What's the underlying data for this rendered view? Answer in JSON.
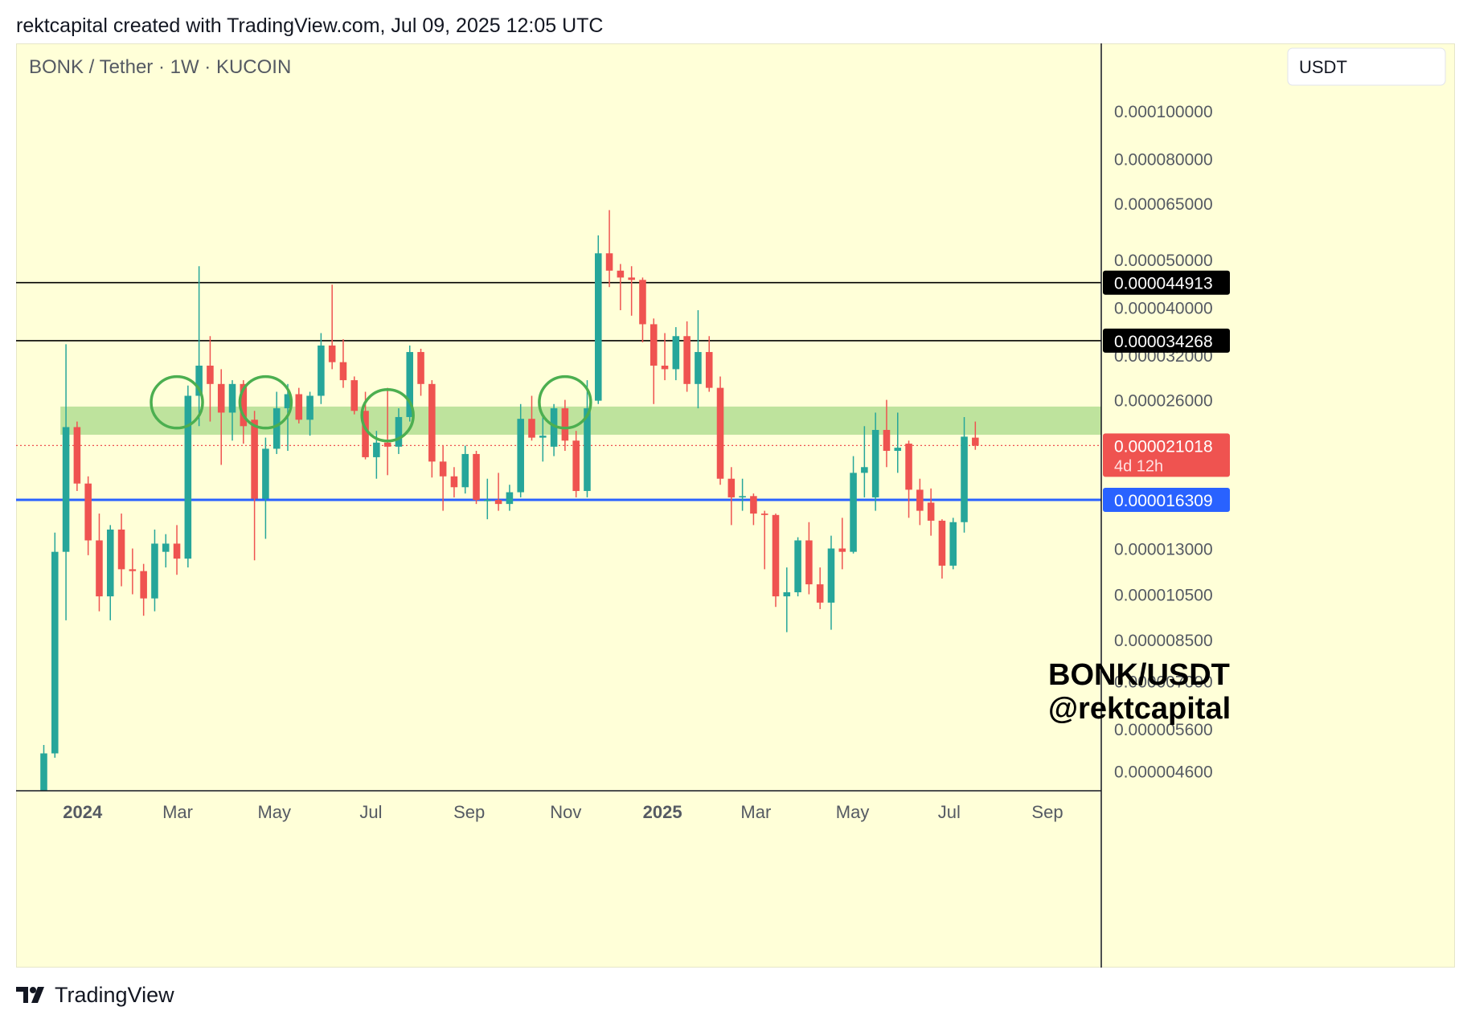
{
  "header": {
    "caption": "rektcapital created with TradingView.com, Jul 09, 2025 12:05 UTC"
  },
  "footer": {
    "brand": "TradingView",
    "logo_icon": "tradingview-logo-icon"
  },
  "chart_data": {
    "type": "candlestick",
    "title": "BONK / Tether · 1W · KUCOIN",
    "currency_button": "USDT",
    "watermark": [
      "BONK/USDT",
      "@rektcapital"
    ],
    "y_scale": "log",
    "y_ticks": [
      "0.000100000",
      "0.000080000",
      "0.000065000",
      "0.000050000",
      "0.000040000",
      "0.000032000",
      "0.000026000",
      "0.000013000",
      "0.000010500",
      "0.000008500",
      "0.000007000",
      "0.000005600",
      "0.000004600"
    ],
    "x_ticks": [
      {
        "label": "2024",
        "date": "2024-01-01",
        "bold": true
      },
      {
        "label": "Mar",
        "date": "2024-03-01",
        "bold": false
      },
      {
        "label": "May",
        "date": "2024-05-01",
        "bold": false
      },
      {
        "label": "Jul",
        "date": "2024-07-01",
        "bold": false
      },
      {
        "label": "Sep",
        "date": "2024-09-01",
        "bold": false
      },
      {
        "label": "Nov",
        "date": "2024-11-01",
        "bold": false
      },
      {
        "label": "2025",
        "date": "2025-01-01",
        "bold": true
      },
      {
        "label": "Mar",
        "date": "2025-03-01",
        "bold": false
      },
      {
        "label": "May",
        "date": "2025-05-01",
        "bold": false
      },
      {
        "label": "Jul",
        "date": "2025-07-01",
        "bold": false
      },
      {
        "label": "Sep",
        "date": "2025-09-01",
        "bold": false
      }
    ],
    "x_range": [
      "2023-11-20",
      "2025-10-05"
    ],
    "y_range": [
      4.2e-06,
      0.000118
    ],
    "horizontal_levels": [
      {
        "value": 4.4913e-05,
        "label": "0.000044913",
        "color": "#000000",
        "label_bg": "#000000"
      },
      {
        "value": 3.4268e-05,
        "label": "0.000034268",
        "color": "#000000",
        "label_bg": "#000000"
      },
      {
        "value": 1.6309e-05,
        "label": "0.000016309",
        "color": "#2962ff",
        "label_bg": "#2962ff"
      }
    ],
    "last_price": {
      "value": 2.1018e-05,
      "label": "0.000021018",
      "countdown": "4d 12h",
      "color": "#ef5350"
    },
    "support_zone": {
      "start": "2023-12-18",
      "end": "2025-10-05",
      "low": 2.21e-05,
      "high": 2.52e-05,
      "color": "#a8d98a"
    },
    "circles": [
      {
        "date": "2024-02-26",
        "price": 2.57e-05
      },
      {
        "date": "2024-04-22",
        "price": 2.57e-05
      },
      {
        "date": "2024-07-08",
        "price": 2.42e-05
      },
      {
        "date": "2024-10-28",
        "price": 2.57e-05
      }
    ],
    "colors": {
      "up": "#26a69a",
      "down": "#ef5350",
      "background": "#ffffd8"
    },
    "candles": [
      {
        "date": "2023-12-04",
        "o": 2.5e-06,
        "h": 5.2e-06,
        "l": 2.5e-06,
        "c": 5e-06
      },
      {
        "date": "2023-12-11",
        "o": 5e-06,
        "h": 1.4e-05,
        "l": 4.9e-06,
        "c": 1.28e-05
      },
      {
        "date": "2023-12-18",
        "o": 1.28e-05,
        "h": 3.37e-05,
        "l": 9.3e-06,
        "c": 2.29e-05
      },
      {
        "date": "2023-12-25",
        "o": 2.29e-05,
        "h": 2.35e-05,
        "l": 1.7e-05,
        "c": 1.76e-05
      },
      {
        "date": "2024-01-01",
        "o": 1.76e-05,
        "h": 1.82e-05,
        "l": 1.26e-05,
        "c": 1.35e-05
      },
      {
        "date": "2024-01-08",
        "o": 1.35e-05,
        "h": 1.53e-05,
        "l": 9.7e-06,
        "c": 1.04e-05
      },
      {
        "date": "2024-01-15",
        "o": 1.04e-05,
        "h": 1.45e-05,
        "l": 9.3e-06,
        "c": 1.42e-05
      },
      {
        "date": "2024-01-22",
        "o": 1.42e-05,
        "h": 1.53e-05,
        "l": 1.09e-05,
        "c": 1.18e-05
      },
      {
        "date": "2024-01-29",
        "o": 1.18e-05,
        "h": 1.3e-05,
        "l": 1.05e-05,
        "c": 1.17e-05
      },
      {
        "date": "2024-02-05",
        "o": 1.17e-05,
        "h": 1.21e-05,
        "l": 9.5e-06,
        "c": 1.03e-05
      },
      {
        "date": "2024-02-12",
        "o": 1.03e-05,
        "h": 1.42e-05,
        "l": 9.7e-06,
        "c": 1.33e-05
      },
      {
        "date": "2024-02-19",
        "o": 1.28e-05,
        "h": 1.39e-05,
        "l": 1.19e-05,
        "c": 1.33e-05
      },
      {
        "date": "2024-02-26",
        "o": 1.33e-05,
        "h": 1.45e-05,
        "l": 1.15e-05,
        "c": 1.24e-05
      },
      {
        "date": "2024-03-04",
        "o": 1.24e-05,
        "h": 2.78e-05,
        "l": 1.19e-05,
        "c": 2.65e-05
      },
      {
        "date": "2024-03-11",
        "o": 2.65e-05,
        "h": 4.85e-05,
        "l": 2.3e-05,
        "c": 3.05e-05
      },
      {
        "date": "2024-03-18",
        "o": 3.05e-05,
        "h": 3.5e-05,
        "l": 2.35e-05,
        "c": 2.8e-05
      },
      {
        "date": "2024-03-25",
        "o": 2.8e-05,
        "h": 3e-05,
        "l": 1.92e-05,
        "c": 2.45e-05
      },
      {
        "date": "2024-04-01",
        "o": 2.45e-05,
        "h": 2.85e-05,
        "l": 2.15e-05,
        "c": 2.8e-05
      },
      {
        "date": "2024-04-08",
        "o": 2.8e-05,
        "h": 2.85e-05,
        "l": 2.12e-05,
        "c": 2.3e-05
      },
      {
        "date": "2024-04-15",
        "o": 2.37e-05,
        "h": 2.47e-05,
        "l": 1.23e-05,
        "c": 1.64e-05
      },
      {
        "date": "2024-04-22",
        "o": 1.64e-05,
        "h": 2.18e-05,
        "l": 1.36e-05,
        "c": 2.07e-05
      },
      {
        "date": "2024-04-29",
        "o": 2.07e-05,
        "h": 2.7e-05,
        "l": 2.02e-05,
        "c": 2.5e-05
      },
      {
        "date": "2024-05-06",
        "o": 2.5e-05,
        "h": 2.8e-05,
        "l": 2.05e-05,
        "c": 2.67e-05
      },
      {
        "date": "2024-05-13",
        "o": 2.67e-05,
        "h": 2.75e-05,
        "l": 2.33e-05,
        "c": 2.37e-05
      },
      {
        "date": "2024-05-20",
        "o": 2.37e-05,
        "h": 2.7e-05,
        "l": 2.2e-05,
        "c": 2.65e-05
      },
      {
        "date": "2024-05-27",
        "o": 2.65e-05,
        "h": 3.55e-05,
        "l": 2.55e-05,
        "c": 3.35e-05
      },
      {
        "date": "2024-06-03",
        "o": 3.35e-05,
        "h": 4.45e-05,
        "l": 3e-05,
        "c": 3.1e-05
      },
      {
        "date": "2024-06-10",
        "o": 3.1e-05,
        "h": 3.45e-05,
        "l": 2.75e-05,
        "c": 2.85e-05
      },
      {
        "date": "2024-06-17",
        "o": 2.85e-05,
        "h": 2.9e-05,
        "l": 2.43e-05,
        "c": 2.47e-05
      },
      {
        "date": "2024-06-24",
        "o": 2.47e-05,
        "h": 2.7e-05,
        "l": 1.97e-05,
        "c": 1.99e-05
      },
      {
        "date": "2024-07-01",
        "o": 1.99e-05,
        "h": 2.25e-05,
        "l": 1.8e-05,
        "c": 2.13e-05
      },
      {
        "date": "2024-07-08",
        "o": 2.13e-05,
        "h": 2.75e-05,
        "l": 1.83e-05,
        "c": 2.09e-05
      },
      {
        "date": "2024-07-15",
        "o": 2.09e-05,
        "h": 2.5e-05,
        "l": 2.02e-05,
        "c": 2.4e-05
      },
      {
        "date": "2024-07-22",
        "o": 2.4e-05,
        "h": 3.35e-05,
        "l": 2.35e-05,
        "c": 3.25e-05
      },
      {
        "date": "2024-07-29",
        "o": 3.25e-05,
        "h": 3.3e-05,
        "l": 2.65e-05,
        "c": 2.8e-05
      },
      {
        "date": "2024-08-05",
        "o": 2.8e-05,
        "h": 2.85e-05,
        "l": 1.81e-05,
        "c": 1.95e-05
      },
      {
        "date": "2024-08-12",
        "o": 1.95e-05,
        "h": 2.1e-05,
        "l": 1.55e-05,
        "c": 1.82e-05
      },
      {
        "date": "2024-08-19",
        "o": 1.82e-05,
        "h": 1.9e-05,
        "l": 1.65e-05,
        "c": 1.73e-05
      },
      {
        "date": "2024-08-26",
        "o": 1.73e-05,
        "h": 2.1e-05,
        "l": 1.68e-05,
        "c": 2.02e-05
      },
      {
        "date": "2024-09-02",
        "o": 2.02e-05,
        "h": 2.05e-05,
        "l": 1.6e-05,
        "c": 1.63e-05
      },
      {
        "date": "2024-09-09",
        "o": 1.63e-05,
        "h": 1.8e-05,
        "l": 1.49e-05,
        "c": 1.63e-05
      },
      {
        "date": "2024-09-16",
        "o": 1.63e-05,
        "h": 1.85e-05,
        "l": 1.55e-05,
        "c": 1.6e-05
      },
      {
        "date": "2024-09-23",
        "o": 1.6e-05,
        "h": 1.75e-05,
        "l": 1.55e-05,
        "c": 1.69e-05
      },
      {
        "date": "2024-09-30",
        "o": 1.69e-05,
        "h": 2.55e-05,
        "l": 1.65e-05,
        "c": 2.38e-05
      },
      {
        "date": "2024-10-07",
        "o": 2.38e-05,
        "h": 2.65e-05,
        "l": 2.15e-05,
        "c": 2.18e-05
      },
      {
        "date": "2024-10-14",
        "o": 2.18e-05,
        "h": 2.4e-05,
        "l": 1.95e-05,
        "c": 2.2e-05
      },
      {
        "date": "2024-10-21",
        "o": 2.09e-05,
        "h": 2.55e-05,
        "l": 2e-05,
        "c": 2.5e-05
      },
      {
        "date": "2024-10-28",
        "o": 2.5e-05,
        "h": 2.6e-05,
        "l": 2.05e-05,
        "c": 2.15e-05
      },
      {
        "date": "2024-11-04",
        "o": 2.15e-05,
        "h": 2.25e-05,
        "l": 1.65e-05,
        "c": 1.7e-05
      },
      {
        "date": "2024-11-11",
        "o": 1.7e-05,
        "h": 2.85e-05,
        "l": 1.65e-05,
        "c": 2.5e-05
      },
      {
        "date": "2024-11-18",
        "o": 2.59e-05,
        "h": 5.6e-05,
        "l": 2.55e-05,
        "c": 5.15e-05
      },
      {
        "date": "2024-11-25",
        "o": 5.15e-05,
        "h": 6.3e-05,
        "l": 4.4e-05,
        "c": 4.75e-05
      },
      {
        "date": "2024-12-02",
        "o": 4.75e-05,
        "h": 4.9e-05,
        "l": 3.95e-05,
        "c": 4.6e-05
      },
      {
        "date": "2024-12-09",
        "o": 4.6e-05,
        "h": 4.85e-05,
        "l": 3.85e-05,
        "c": 4.55e-05
      },
      {
        "date": "2024-12-16",
        "o": 4.55e-05,
        "h": 4.6e-05,
        "l": 3.4e-05,
        "c": 3.7e-05
      },
      {
        "date": "2024-12-23",
        "o": 3.7e-05,
        "h": 3.8e-05,
        "l": 2.55e-05,
        "c": 3.05e-05
      },
      {
        "date": "2024-12-30",
        "o": 3.05e-05,
        "h": 3.55e-05,
        "l": 2.85e-05,
        "c": 3e-05
      },
      {
        "date": "2025-01-06",
        "o": 3e-05,
        "h": 3.65e-05,
        "l": 2.85e-05,
        "c": 3.5e-05
      },
      {
        "date": "2025-01-13",
        "o": 3.5e-05,
        "h": 3.75e-05,
        "l": 2.7e-05,
        "c": 2.8e-05
      },
      {
        "date": "2025-01-20",
        "o": 2.8e-05,
        "h": 3.95e-05,
        "l": 2.5e-05,
        "c": 3.25e-05
      },
      {
        "date": "2025-01-27",
        "o": 3.25e-05,
        "h": 3.5e-05,
        "l": 2.7e-05,
        "c": 2.75e-05
      },
      {
        "date": "2025-02-03",
        "o": 2.75e-05,
        "h": 2.9e-05,
        "l": 1.75e-05,
        "c": 1.8e-05
      },
      {
        "date": "2025-02-10",
        "o": 1.8e-05,
        "h": 1.9e-05,
        "l": 1.45e-05,
        "c": 1.65e-05
      },
      {
        "date": "2025-02-17",
        "o": 1.65e-05,
        "h": 1.8e-05,
        "l": 1.55e-05,
        "c": 1.66e-05
      },
      {
        "date": "2025-02-24",
        "o": 1.66e-05,
        "h": 1.68e-05,
        "l": 1.45e-05,
        "c": 1.53e-05
      },
      {
        "date": "2025-03-03",
        "o": 1.53e-05,
        "h": 1.55e-05,
        "l": 1.18e-05,
        "c": 1.52e-05
      },
      {
        "date": "2025-03-10",
        "o": 1.52e-05,
        "h": 1.53e-05,
        "l": 9.9e-06,
        "c": 1.04e-05
      },
      {
        "date": "2025-03-17",
        "o": 1.04e-05,
        "h": 1.19e-05,
        "l": 8.8e-06,
        "c": 1.06e-05
      },
      {
        "date": "2025-03-24",
        "o": 1.06e-05,
        "h": 1.37e-05,
        "l": 1.04e-05,
        "c": 1.35e-05
      },
      {
        "date": "2025-03-31",
        "o": 1.35e-05,
        "h": 1.47e-05,
        "l": 1.05e-05,
        "c": 1.1e-05
      },
      {
        "date": "2025-04-07",
        "o": 1.1e-05,
        "h": 1.19e-05,
        "l": 9.8e-06,
        "c": 1.01e-05
      },
      {
        "date": "2025-04-14",
        "o": 1.01e-05,
        "h": 1.38e-05,
        "l": 8.9e-06,
        "c": 1.3e-05
      },
      {
        "date": "2025-04-21",
        "o": 1.3e-05,
        "h": 1.5e-05,
        "l": 1.18e-05,
        "c": 1.28e-05
      },
      {
        "date": "2025-04-28",
        "o": 1.28e-05,
        "h": 2e-05,
        "l": 1.27e-05,
        "c": 1.85e-05
      },
      {
        "date": "2025-05-05",
        "o": 1.85e-05,
        "h": 2.3e-05,
        "l": 1.65e-05,
        "c": 1.9e-05
      },
      {
        "date": "2025-05-12",
        "o": 1.65e-05,
        "h": 2.45e-05,
        "l": 1.55e-05,
        "c": 2.26e-05
      },
      {
        "date": "2025-05-19",
        "o": 2.26e-05,
        "h": 2.6e-05,
        "l": 1.9e-05,
        "c": 2.05e-05
      },
      {
        "date": "2025-05-26",
        "o": 2.05e-05,
        "h": 2.45e-05,
        "l": 1.85e-05,
        "c": 2.08e-05
      },
      {
        "date": "2025-06-02",
        "o": 2.12e-05,
        "h": 2.15e-05,
        "l": 1.5e-05,
        "c": 1.71e-05
      },
      {
        "date": "2025-06-09",
        "o": 1.71e-05,
        "h": 1.8e-05,
        "l": 1.45e-05,
        "c": 1.55e-05
      },
      {
        "date": "2025-06-16",
        "o": 1.61e-05,
        "h": 1.72e-05,
        "l": 1.38e-05,
        "c": 1.48e-05
      },
      {
        "date": "2025-06-23",
        "o": 1.48e-05,
        "h": 1.49e-05,
        "l": 1.13e-05,
        "c": 1.2e-05
      },
      {
        "date": "2025-06-30",
        "o": 1.2e-05,
        "h": 1.5e-05,
        "l": 1.18e-05,
        "c": 1.47e-05
      },
      {
        "date": "2025-07-07",
        "o": 1.47e-05,
        "h": 2.4e-05,
        "l": 1.4e-05,
        "c": 2.19e-05
      },
      {
        "date": "2025-07-14",
        "o": 2.18e-05,
        "h": 2.35e-05,
        "l": 2.06e-05,
        "c": 2.1e-05
      }
    ]
  }
}
